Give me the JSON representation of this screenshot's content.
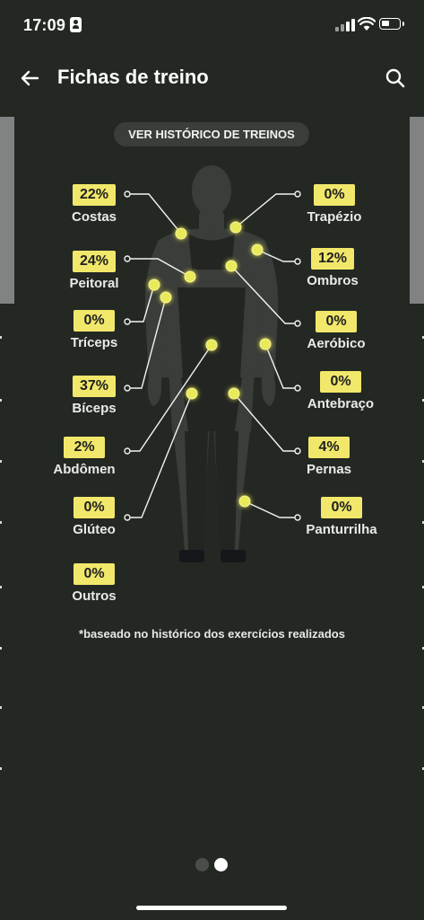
{
  "status_bar": {
    "time": "17:09"
  },
  "header": {
    "title": "Fichas de treino"
  },
  "history_button": {
    "label": "VER HISTÓRICO DE TREINOS"
  },
  "muscles": {
    "costas": {
      "label": "Costas",
      "percent": "22%"
    },
    "peitoral": {
      "label": "Peitoral",
      "percent": "24%"
    },
    "triceps": {
      "label": "Tríceps",
      "percent": "0%"
    },
    "biceps": {
      "label": "Bíceps",
      "percent": "37%"
    },
    "abdomen": {
      "label": "Abdômen",
      "percent": "2%"
    },
    "gluteo": {
      "label": "Glúteo",
      "percent": "0%"
    },
    "outros": {
      "label": "Outros",
      "percent": "0%"
    },
    "trapezio": {
      "label": "Trapézio",
      "percent": "0%"
    },
    "ombros": {
      "label": "Ombros",
      "percent": "12%"
    },
    "aerobico": {
      "label": "Aeróbico",
      "percent": "0%"
    },
    "antebraco": {
      "label": "Antebraço",
      "percent": "0%"
    },
    "pernas": {
      "label": "Pernas",
      "percent": "4%"
    },
    "panturrilha": {
      "label": "Panturrilha",
      "percent": "0%"
    }
  },
  "footnote": "*baseado no histórico dos exercícios realizados",
  "pagination": {
    "current": 2,
    "total": 2
  },
  "colors": {
    "background": "#242823",
    "badge": "#f1e86b",
    "hotspot": "#e9ea5a",
    "body": "#3a3d39"
  },
  "icons": {
    "back": "arrow-left-icon",
    "search": "search-icon"
  }
}
